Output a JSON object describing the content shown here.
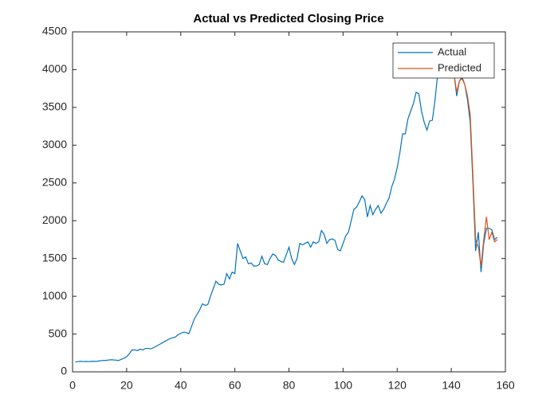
{
  "chart_data": {
    "type": "line",
    "title": "Actual vs Predicted Closing Price",
    "x": [
      1,
      2,
      3,
      4,
      5,
      6,
      7,
      8,
      9,
      10,
      11,
      12,
      13,
      14,
      15,
      16,
      17,
      18,
      19,
      20,
      21,
      22,
      23,
      24,
      25,
      26,
      27,
      28,
      29,
      30,
      31,
      32,
      33,
      34,
      35,
      36,
      37,
      38,
      39,
      40,
      41,
      42,
      43,
      44,
      45,
      46,
      47,
      48,
      49,
      50,
      51,
      52,
      53,
      54,
      55,
      56,
      57,
      58,
      59,
      60,
      61,
      62,
      63,
      64,
      65,
      66,
      67,
      68,
      69,
      70,
      71,
      72,
      73,
      74,
      75,
      76,
      77,
      78,
      79,
      80,
      81,
      82,
      83,
      84,
      85,
      86,
      87,
      88,
      89,
      90,
      91,
      92,
      93,
      94,
      95,
      96,
      97,
      98,
      99,
      100,
      101,
      102,
      103,
      104,
      105,
      106,
      107,
      108,
      109,
      110,
      111,
      112,
      113,
      114,
      115,
      116,
      117,
      118,
      119,
      120,
      121,
      122,
      123,
      124,
      125,
      126,
      127,
      128,
      129,
      130,
      131,
      132,
      133,
      134,
      135,
      136,
      137,
      138,
      139,
      140,
      141,
      142,
      143,
      144,
      145,
      146,
      147,
      148,
      149,
      150,
      151,
      152,
      153,
      154,
      155,
      156,
      157
    ],
    "series": [
      {
        "name": "Actual",
        "color": "#0072bd",
        "values": [
          130,
          135,
          140,
          135,
          138,
          135,
          140,
          138,
          140,
          145,
          150,
          150,
          155,
          160,
          158,
          155,
          150,
          165,
          180,
          200,
          240,
          290,
          290,
          280,
          300,
          290,
          310,
          310,
          305,
          320,
          340,
          360,
          380,
          400,
          420,
          440,
          450,
          460,
          490,
          510,
          525,
          520,
          505,
          600,
          700,
          760,
          820,
          900,
          880,
          890,
          1000,
          1100,
          1200,
          1160,
          1150,
          1160,
          1300,
          1230,
          1320,
          1300,
          1700,
          1600,
          1500,
          1520,
          1430,
          1440,
          1400,
          1400,
          1420,
          1530,
          1430,
          1420,
          1500,
          1560,
          1540,
          1480,
          1460,
          1450,
          1550,
          1650,
          1500,
          1420,
          1500,
          1700,
          1680,
          1700,
          1720,
          1650,
          1720,
          1700,
          1720,
          1870,
          1820,
          1700,
          1750,
          1760,
          1740,
          1620,
          1600,
          1700,
          1800,
          1850,
          2000,
          2150,
          2180,
          2250,
          2330,
          2280,
          2050,
          2200,
          2080,
          2150,
          2200,
          2100,
          2150,
          2230,
          2300,
          2450,
          2550,
          2700,
          2900,
          3150,
          3150,
          3350,
          3450,
          3550,
          3700,
          3680,
          3450,
          3300,
          3200,
          3320,
          3330,
          3600,
          3950,
          3980,
          4000,
          3980,
          3950,
          3900,
          3950,
          3650,
          3850,
          3900,
          3800,
          3600,
          3300,
          2500,
          1600,
          1850,
          1320,
          1700,
          1900,
          1900,
          1880,
          1750,
          1780
        ]
      },
      {
        "name": "Predicted",
        "color": "#d95319",
        "values": [
          null,
          null,
          null,
          null,
          null,
          null,
          null,
          null,
          null,
          null,
          null,
          null,
          null,
          null,
          null,
          null,
          null,
          null,
          null,
          null,
          null,
          null,
          null,
          null,
          null,
          null,
          null,
          null,
          null,
          null,
          null,
          null,
          null,
          null,
          null,
          null,
          null,
          null,
          null,
          null,
          null,
          null,
          null,
          null,
          null,
          null,
          null,
          null,
          null,
          null,
          null,
          null,
          null,
          null,
          null,
          null,
          null,
          null,
          null,
          null,
          null,
          null,
          null,
          null,
          null,
          null,
          null,
          null,
          null,
          null,
          null,
          null,
          null,
          null,
          null,
          null,
          null,
          null,
          null,
          null,
          null,
          null,
          null,
          null,
          null,
          null,
          null,
          null,
          null,
          null,
          null,
          null,
          null,
          null,
          null,
          null,
          null,
          null,
          null,
          null,
          null,
          null,
          null,
          null,
          null,
          null,
          null,
          null,
          null,
          null,
          null,
          null,
          null,
          null,
          null,
          null,
          null,
          null,
          null,
          null,
          null,
          null,
          null,
          null,
          null,
          null,
          null,
          null,
          null,
          null,
          null,
          null,
          null,
          null,
          null,
          null,
          null,
          null,
          null,
          null,
          3950,
          3700,
          3850,
          3880,
          3800,
          3650,
          3400,
          2600,
          1750,
          1650,
          1400,
          1750,
          2050,
          1750,
          1850,
          1720,
          1750
        ]
      }
    ],
    "xlim": [
      0,
      160
    ],
    "xticks": [
      0,
      20,
      40,
      60,
      80,
      100,
      120,
      140,
      160
    ],
    "ylim": [
      0,
      4500
    ],
    "yticks": [
      0,
      500,
      1000,
      1500,
      2000,
      2500,
      3000,
      3500,
      4000,
      4500
    ],
    "grid": false,
    "legend": "northeast"
  }
}
